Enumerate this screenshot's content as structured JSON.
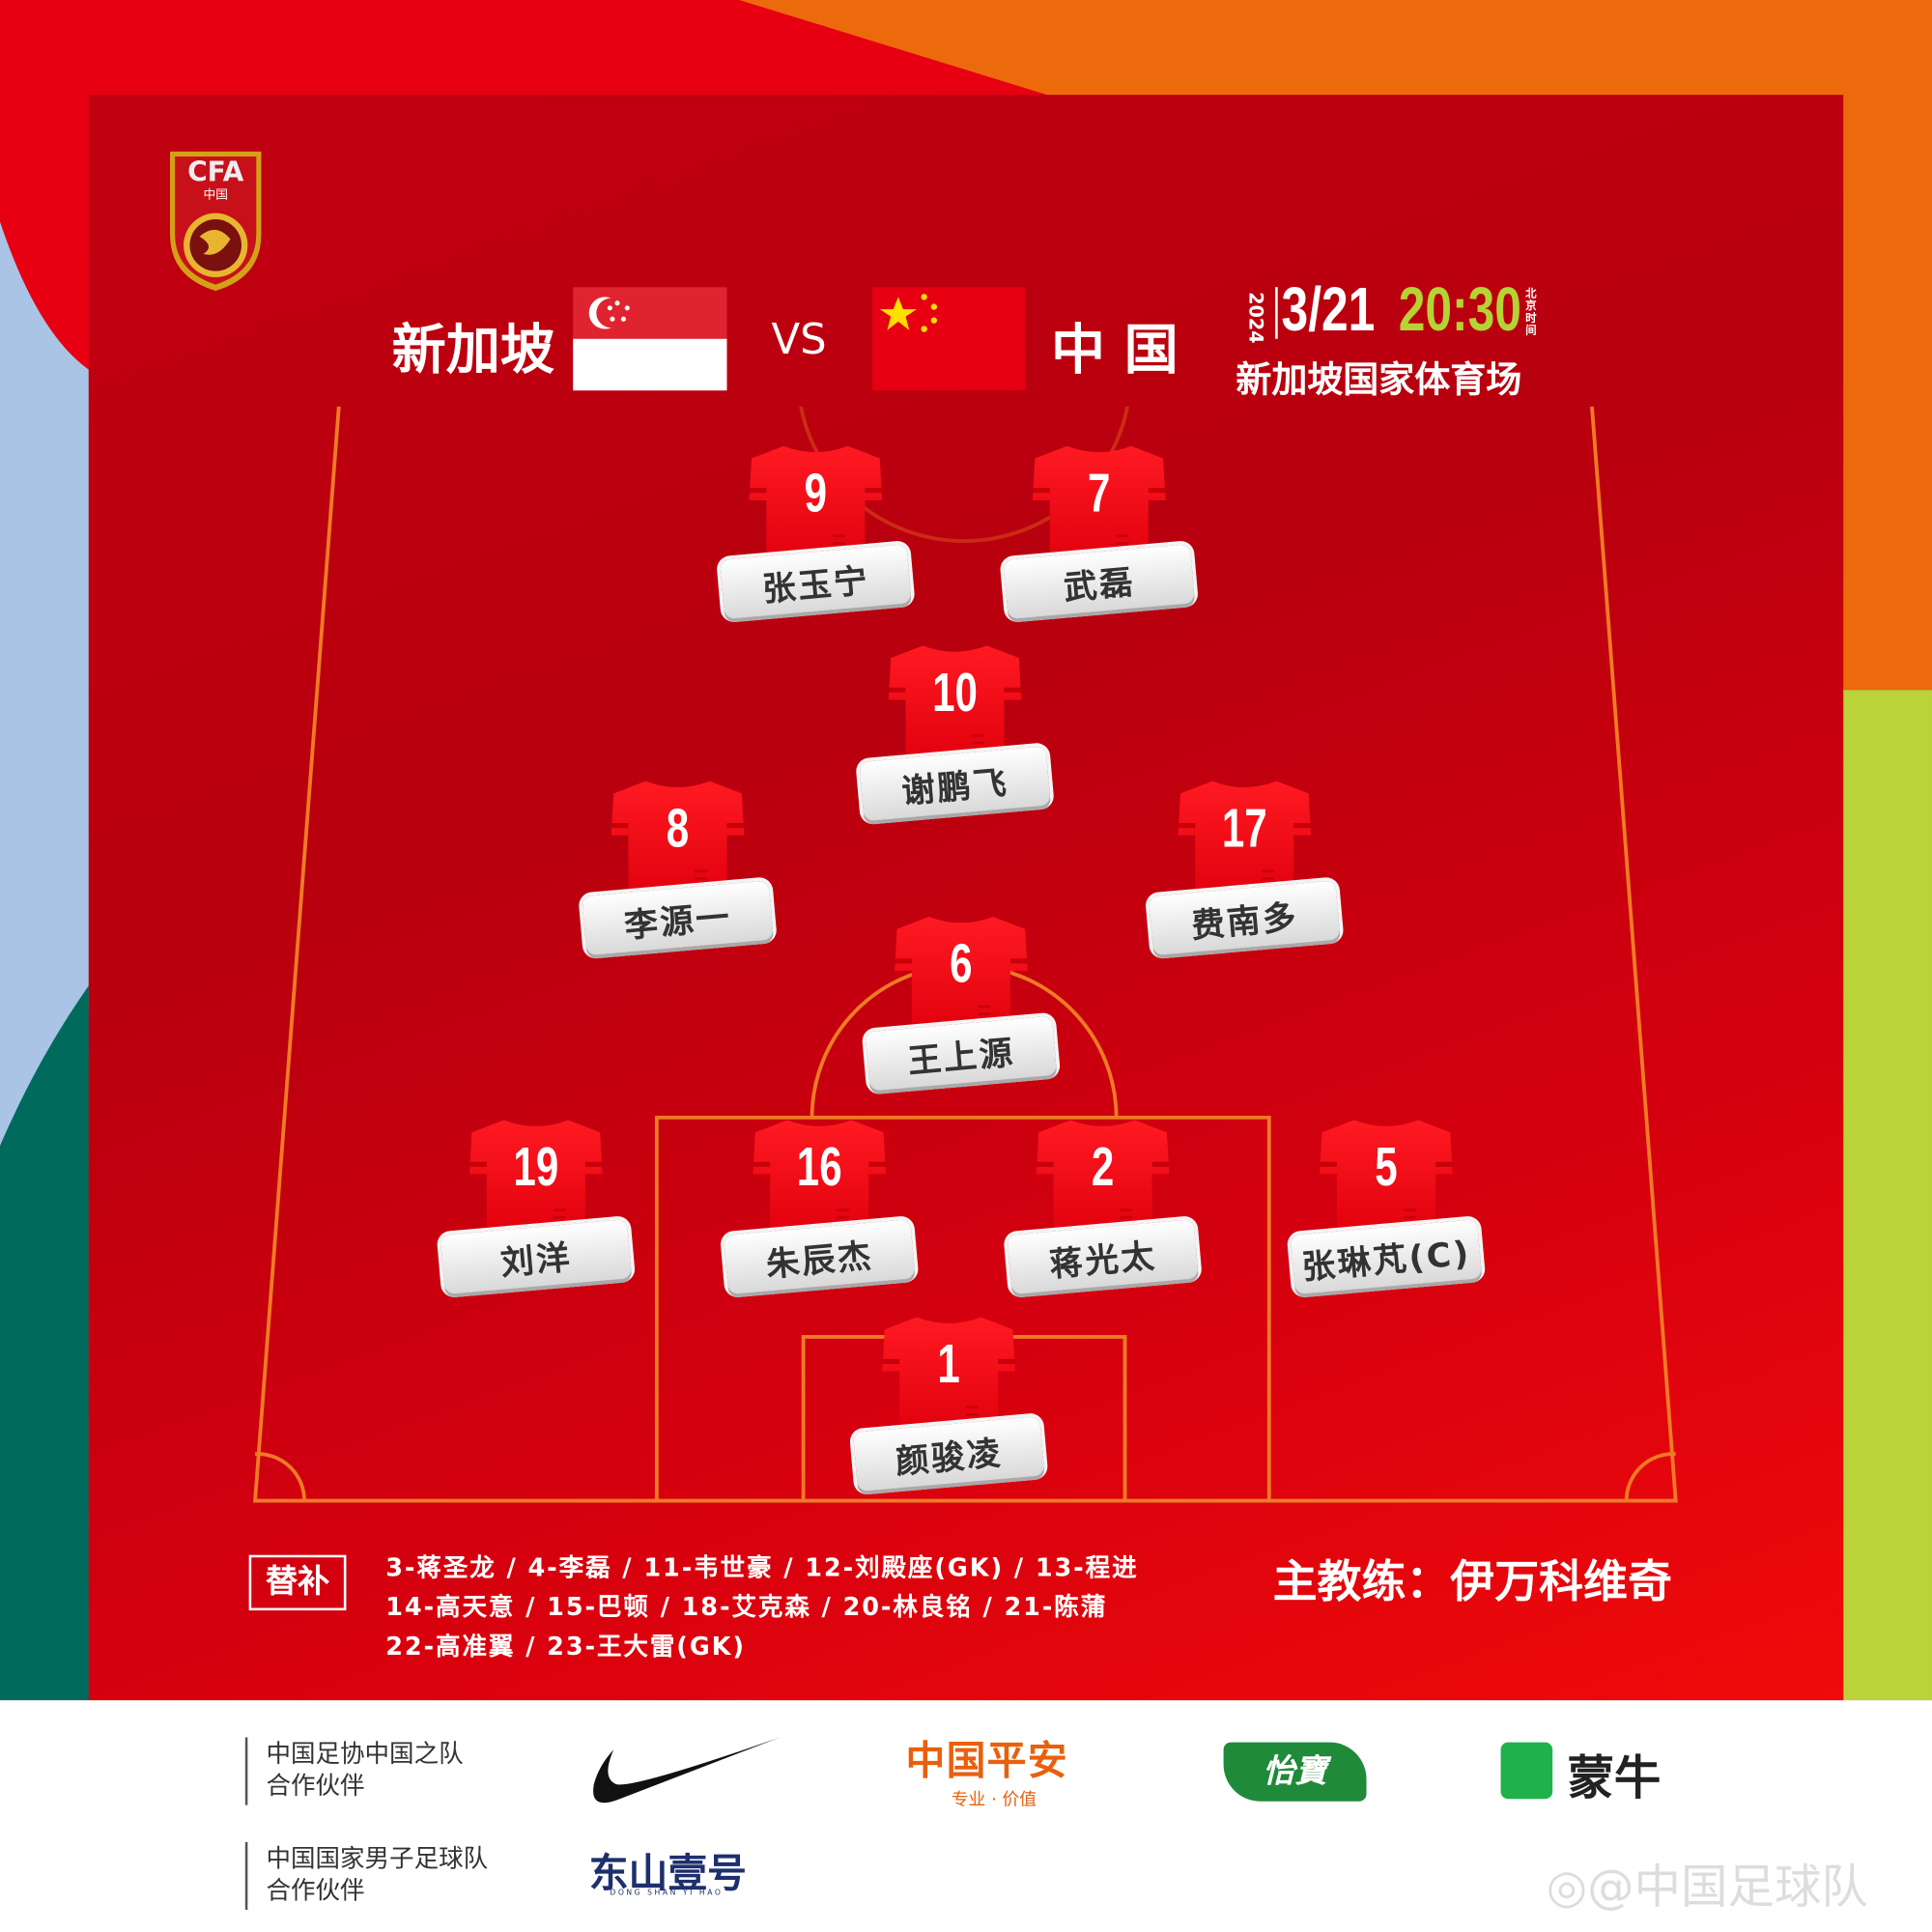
{
  "header": {
    "home_team": "新加坡",
    "vs": "VS",
    "away_team": "中 国",
    "year": "2024",
    "date": "3/21",
    "time": "20:30",
    "time_zone": "北京时间",
    "venue": "新加坡国家体育场",
    "logo_text": "CFA 中国"
  },
  "colors": {
    "primary_red": "#e60012",
    "time_green": "#b5d334",
    "pitch_line": "#ef7a26"
  },
  "lineup": [
    {
      "number": "9",
      "name": "张玉宁"
    },
    {
      "number": "7",
      "name": "武磊"
    },
    {
      "number": "10",
      "name": "谢鹏飞"
    },
    {
      "number": "8",
      "name": "李源一"
    },
    {
      "number": "17",
      "name": "费南多"
    },
    {
      "number": "6",
      "name": "王上源"
    },
    {
      "number": "19",
      "name": "刘洋"
    },
    {
      "number": "16",
      "name": "朱辰杰"
    },
    {
      "number": "2",
      "name": "蒋光太"
    },
    {
      "number": "5",
      "name": "张琳芃(C)"
    },
    {
      "number": "1",
      "name": "颜骏凌"
    }
  ],
  "substitutes": {
    "label": "替补",
    "lines": [
      "3-蒋圣龙 / 4-李磊 / 11-韦世豪 / 12-刘殿座(GK) / 13-程进",
      "14-高天意 / 15-巴顿 / 18-艾克森 / 20-林良铭 / 21-陈蒲",
      "22-高准翼 / 23-王大雷(GK)"
    ]
  },
  "coach": "主教练：伊万科维奇",
  "sponsors": {
    "group1_label": [
      "中国足协中国之队",
      "合作伙伴"
    ],
    "group2_label": [
      "中国国家男子足球队",
      "合作伙伴"
    ],
    "pingan": "中国平安",
    "pingan_slogan": "专业 · 价值",
    "yibao": "怡寶",
    "mengniu": "蒙牛",
    "dongshan": "东山壹号",
    "dongshan_sub": "DONG SHAN YI HAO"
  },
  "watermark": "@中国足球队"
}
